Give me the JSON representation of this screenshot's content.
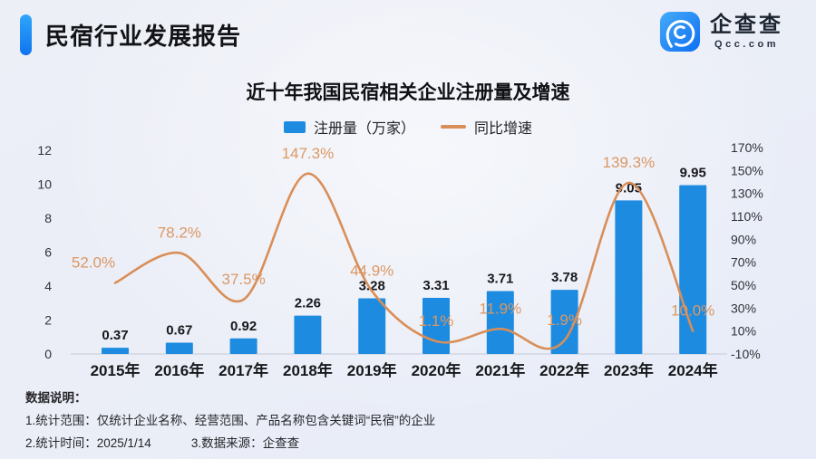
{
  "header": {
    "title": "民宿行业发展报告"
  },
  "logo": {
    "name": "企查查",
    "domain": "Qcc.com",
    "brand_color": "#1e88f7"
  },
  "chart_data": {
    "type": "combo",
    "title": "近十年我国民宿相关企业注册量及增速",
    "categories": [
      "2015年",
      "2016年",
      "2017年",
      "2018年",
      "2019年",
      "2020年",
      "2021年",
      "2022年",
      "2023年",
      "2024年"
    ],
    "series": [
      {
        "name": "注册量（万家）",
        "kind": "bar",
        "axis": "left",
        "color": "#1d8ce0",
        "values": [
          0.37,
          0.67,
          0.92,
          2.26,
          3.28,
          3.31,
          3.71,
          3.78,
          9.05,
          9.95
        ]
      },
      {
        "name": "同比增速",
        "kind": "line",
        "axis": "right",
        "color": "#d98e58",
        "unit": "%",
        "values": [
          52.0,
          78.2,
          37.5,
          147.3,
          44.9,
          1.1,
          11.9,
          1.9,
          139.3,
          10.0
        ]
      }
    ],
    "left_axis": {
      "range": [
        0,
        12
      ],
      "ticks": [
        0,
        2,
        4,
        6,
        8,
        10,
        12
      ]
    },
    "right_axis": {
      "range": [
        -10,
        170
      ],
      "ticks": [
        -10,
        10,
        30,
        50,
        70,
        90,
        110,
        130,
        150,
        170
      ],
      "unit": "%"
    },
    "grid": false,
    "legend_position": "top",
    "bar_label_color": "#17181b",
    "line_label_color": "#dc9763"
  },
  "footer": {
    "heading": "数据说明：",
    "lines": [
      "1.统计范围：仅统计企业名称、经营范围、产品名称包含关键词“民宿”的企业",
      "2.统计时间：2025/1/14",
      "3.数据来源：企查查"
    ]
  }
}
